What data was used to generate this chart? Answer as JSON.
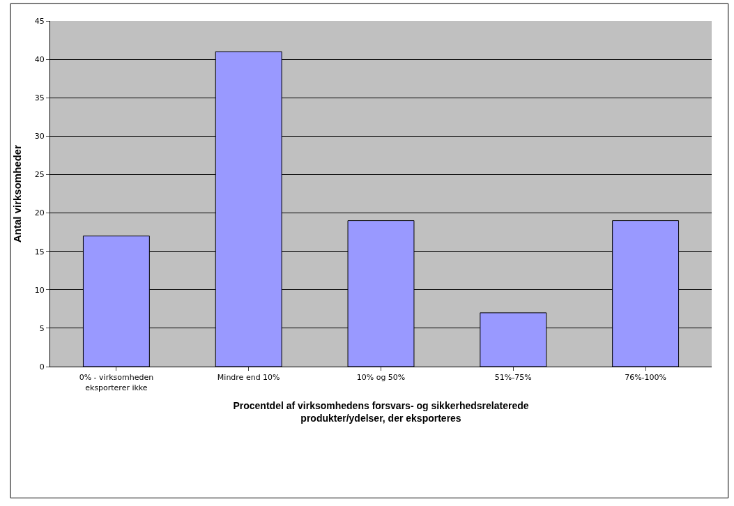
{
  "chart_data": {
    "type": "bar",
    "categories": [
      "0% - virksomheden\neksporterer ikke",
      "Mindre end 10%",
      "10% og 50%",
      "51%-75%",
      "76%-100%"
    ],
    "values": [
      17,
      41,
      19,
      7,
      19
    ],
    "color": "#9999ff",
    "xlabel": "Procentdel af virksomhedens forsvars- og sikkerhedsrelaterede\nprodukter/ydelser, der eksporteres",
    "ylabel": "Antal virksomheder",
    "ylim": [
      0,
      45
    ],
    "yticks": [
      0,
      5,
      10,
      15,
      20,
      25,
      30,
      35,
      40,
      45
    ],
    "grid": "y"
  }
}
